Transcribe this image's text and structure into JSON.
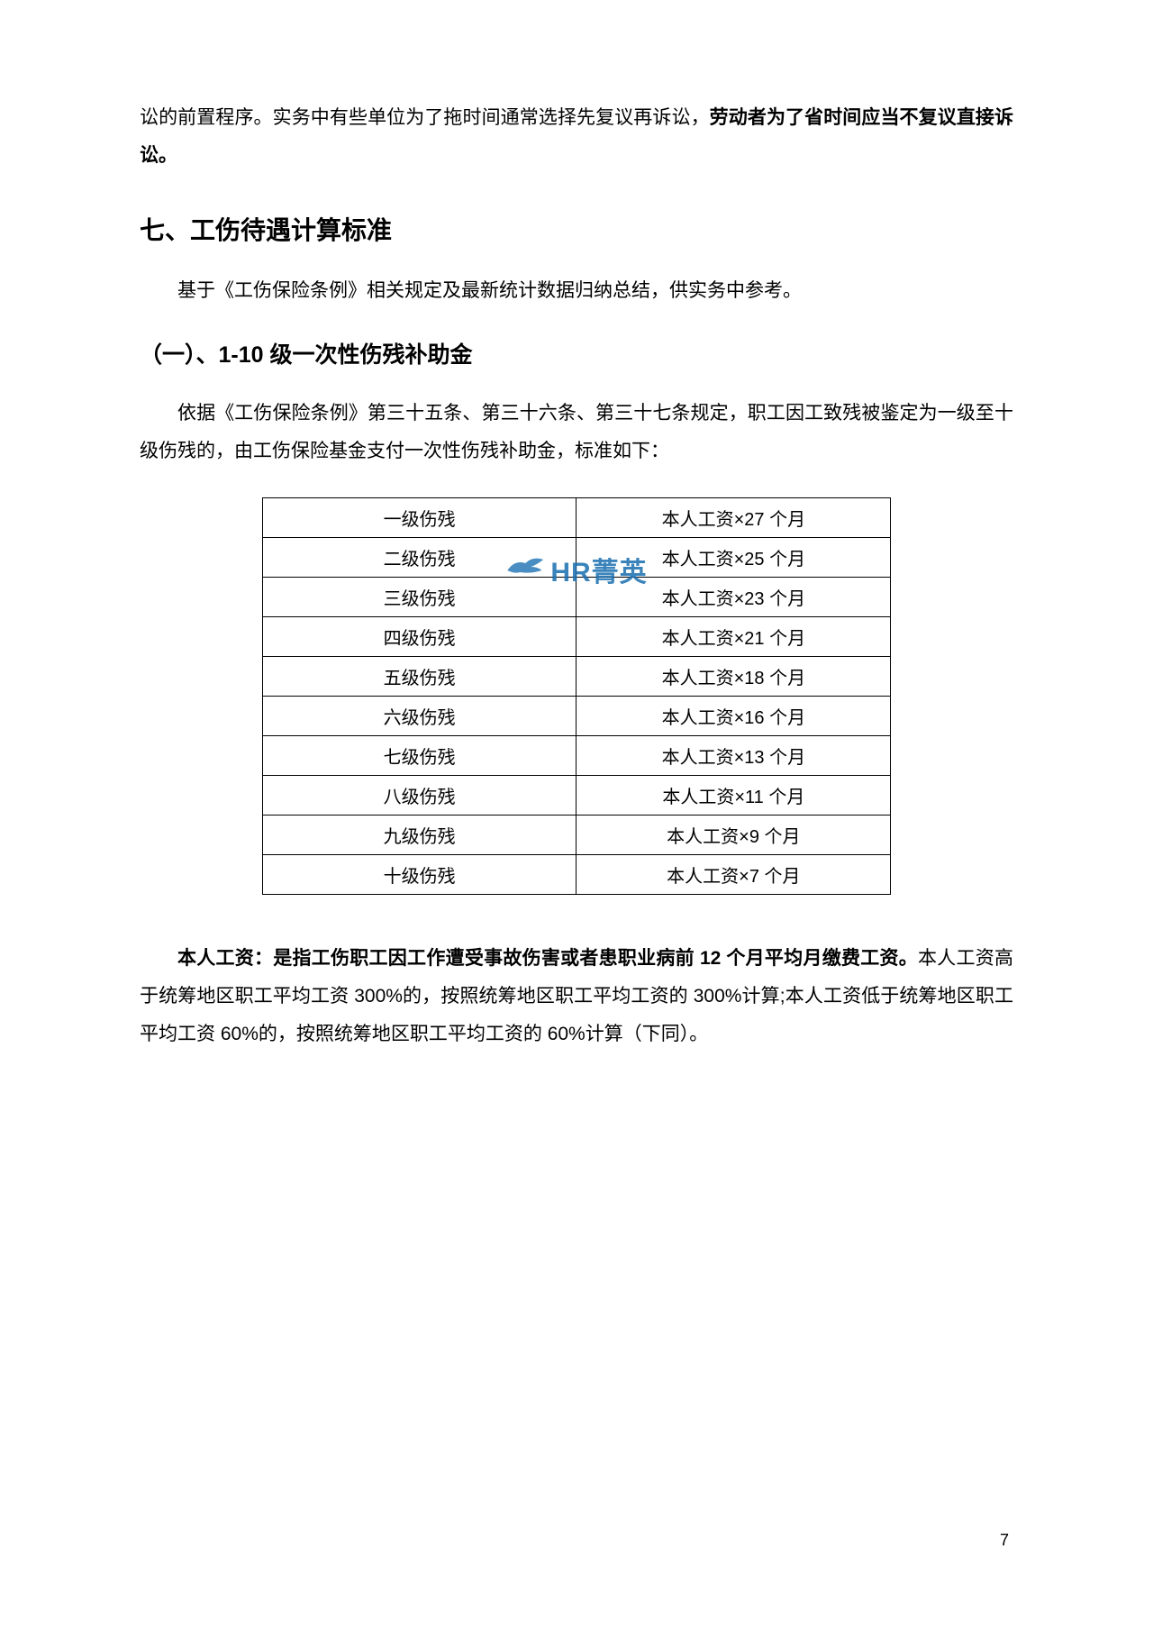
{
  "para1_a": "讼的前置程序。实务中有些单位为了拖时间通常选择先复议再诉讼，",
  "para1_b": "劳动者为了省时间应当不复议直接诉讼。",
  "h1": "七、工伤待遇计算标准",
  "para2": "基于《工伤保险条例》相关规定及最新统计数据归纳总结，供实务中参考。",
  "h2": "（一）、1-10 级一次性伤残补助金",
  "para3": "依据《工伤保险条例》第三十五条、第三十六条、第三十七条规定，职工因工致残被鉴定为一级至十级伤残的，由工伤保险基金支付一次性伤残补助金，标准如下：",
  "table": {
    "rows": [
      [
        "一级伤残",
        "本人工资×27 个月"
      ],
      [
        "二级伤残",
        "本人工资×25 个月"
      ],
      [
        "三级伤残",
        "本人工资×23 个月"
      ],
      [
        "四级伤残",
        "本人工资×21 个月"
      ],
      [
        "五级伤残",
        "本人工资×18 个月"
      ],
      [
        "六级伤残",
        "本人工资×16 个月"
      ],
      [
        "七级伤残",
        "本人工资×13 个月"
      ],
      [
        "八级伤残",
        "本人工资×11 个月"
      ],
      [
        "九级伤残",
        "本人工资×9 个月"
      ],
      [
        "十级伤残",
        "本人工资×7 个月"
      ]
    ]
  },
  "para4_b": "本人工资：是指工伤职工因工作遭受事故伤害或者患职业病前 12 个月平均月缴费工资。",
  "para4_r": "本人工资高于统筹地区职工平均工资 300%的，按照统筹地区职工平均工资的 300%计算;本人工资低于统筹地区职工平均工资 60%的，按照统筹地区职工平均工资的 60%计算（下同）。",
  "pagenum": "7",
  "watermark": "HR菁英"
}
